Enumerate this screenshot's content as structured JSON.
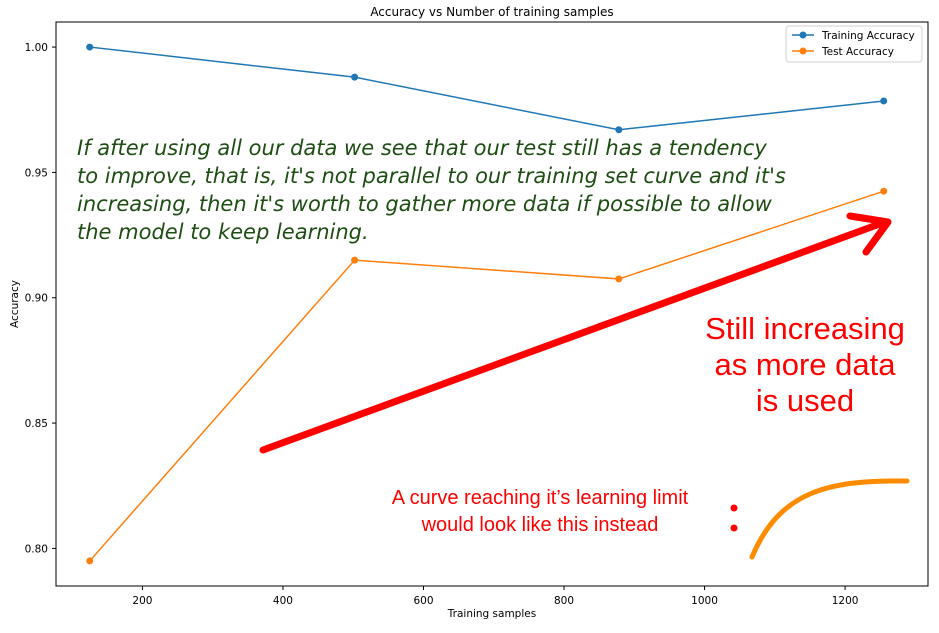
{
  "chart_data": {
    "type": "line",
    "title": "Accuracy vs Number of training samples",
    "xlabel": "Training samples",
    "ylabel": "Accuracy",
    "xlim": [
      77,
      1318
    ],
    "ylim": [
      0.785,
      1.01
    ],
    "xticks": [
      200,
      400,
      600,
      800,
      1000,
      1200
    ],
    "yticks": [
      0.8,
      0.85,
      0.9,
      0.95,
      1.0
    ],
    "xtick_labels": [
      "200",
      "400",
      "600",
      "800",
      "1000",
      "1200"
    ],
    "ytick_labels": [
      "0.80",
      "0.85",
      "0.90",
      "0.95",
      "1.00"
    ],
    "grid": false,
    "legend_position": "top-right",
    "x": [
      125,
      502,
      878,
      1255
    ],
    "series": [
      {
        "name": "Training Accuracy",
        "values": [
          1.0,
          0.988,
          0.967,
          0.9785
        ],
        "color": "#1f77b4"
      },
      {
        "name": "Test Accuracy",
        "values": [
          0.795,
          0.915,
          0.9075,
          0.9425
        ],
        "color": "#ff7f0e"
      }
    ]
  },
  "annotations": {
    "green_note_lines": [
      "If after using all our data we see that our test still has a tendency",
      "to improve, that is, it's not parallel to our training set curve and it's",
      "increasing, then it's worth to gather more data if possible to allow",
      "the model to keep learning."
    ],
    "increasing_note_lines": [
      "Still increasing",
      "as more data",
      "is used"
    ],
    "limit_note_lines": [
      "A curve reaching it’s learning limit",
      "would look like this instead"
    ],
    "colors": {
      "green_text": "#1e4d14",
      "red": "#ff0000",
      "example_curve": "#ff8c00"
    }
  }
}
